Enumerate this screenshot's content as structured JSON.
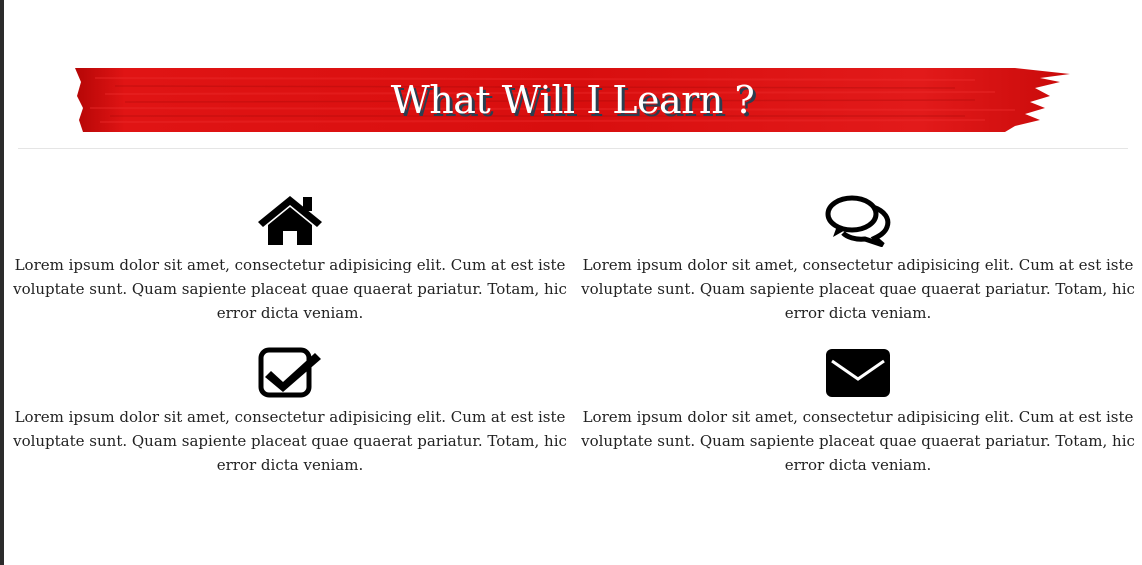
{
  "section": {
    "title": "What Will I Learn ?",
    "accent_color": "#d40f0f",
    "title_shadow_color": "#2c3e50"
  },
  "features": [
    {
      "icon": "home-icon",
      "text": "Lorem ipsum dolor sit amet, consectetur adipisicing elit. Cum at est iste voluptate sunt. Quam sapiente placeat quae quaerat pariatur. Totam, hic error dicta veniam."
    },
    {
      "icon": "comments-icon",
      "text": "Lorem ipsum dolor sit amet, consectetur adipisicing elit. Cum at est iste voluptate sunt. Quam sapiente placeat quae quaerat pariatur. Totam, hic error dicta veniam."
    },
    {
      "icon": "checkbox-checked-icon",
      "text": "Lorem ipsum dolor sit amet, consectetur adipisicing elit. Cum at est iste voluptate sunt. Quam sapiente placeat quae quaerat pariatur. Totam, hic error dicta veniam."
    },
    {
      "icon": "envelope-icon",
      "text": "Lorem ipsum dolor sit amet, consectetur adipisicing elit. Cum at est iste voluptate sunt. Quam sapiente placeat quae quaerat pariatur. Totam, hic error dicta veniam."
    }
  ]
}
